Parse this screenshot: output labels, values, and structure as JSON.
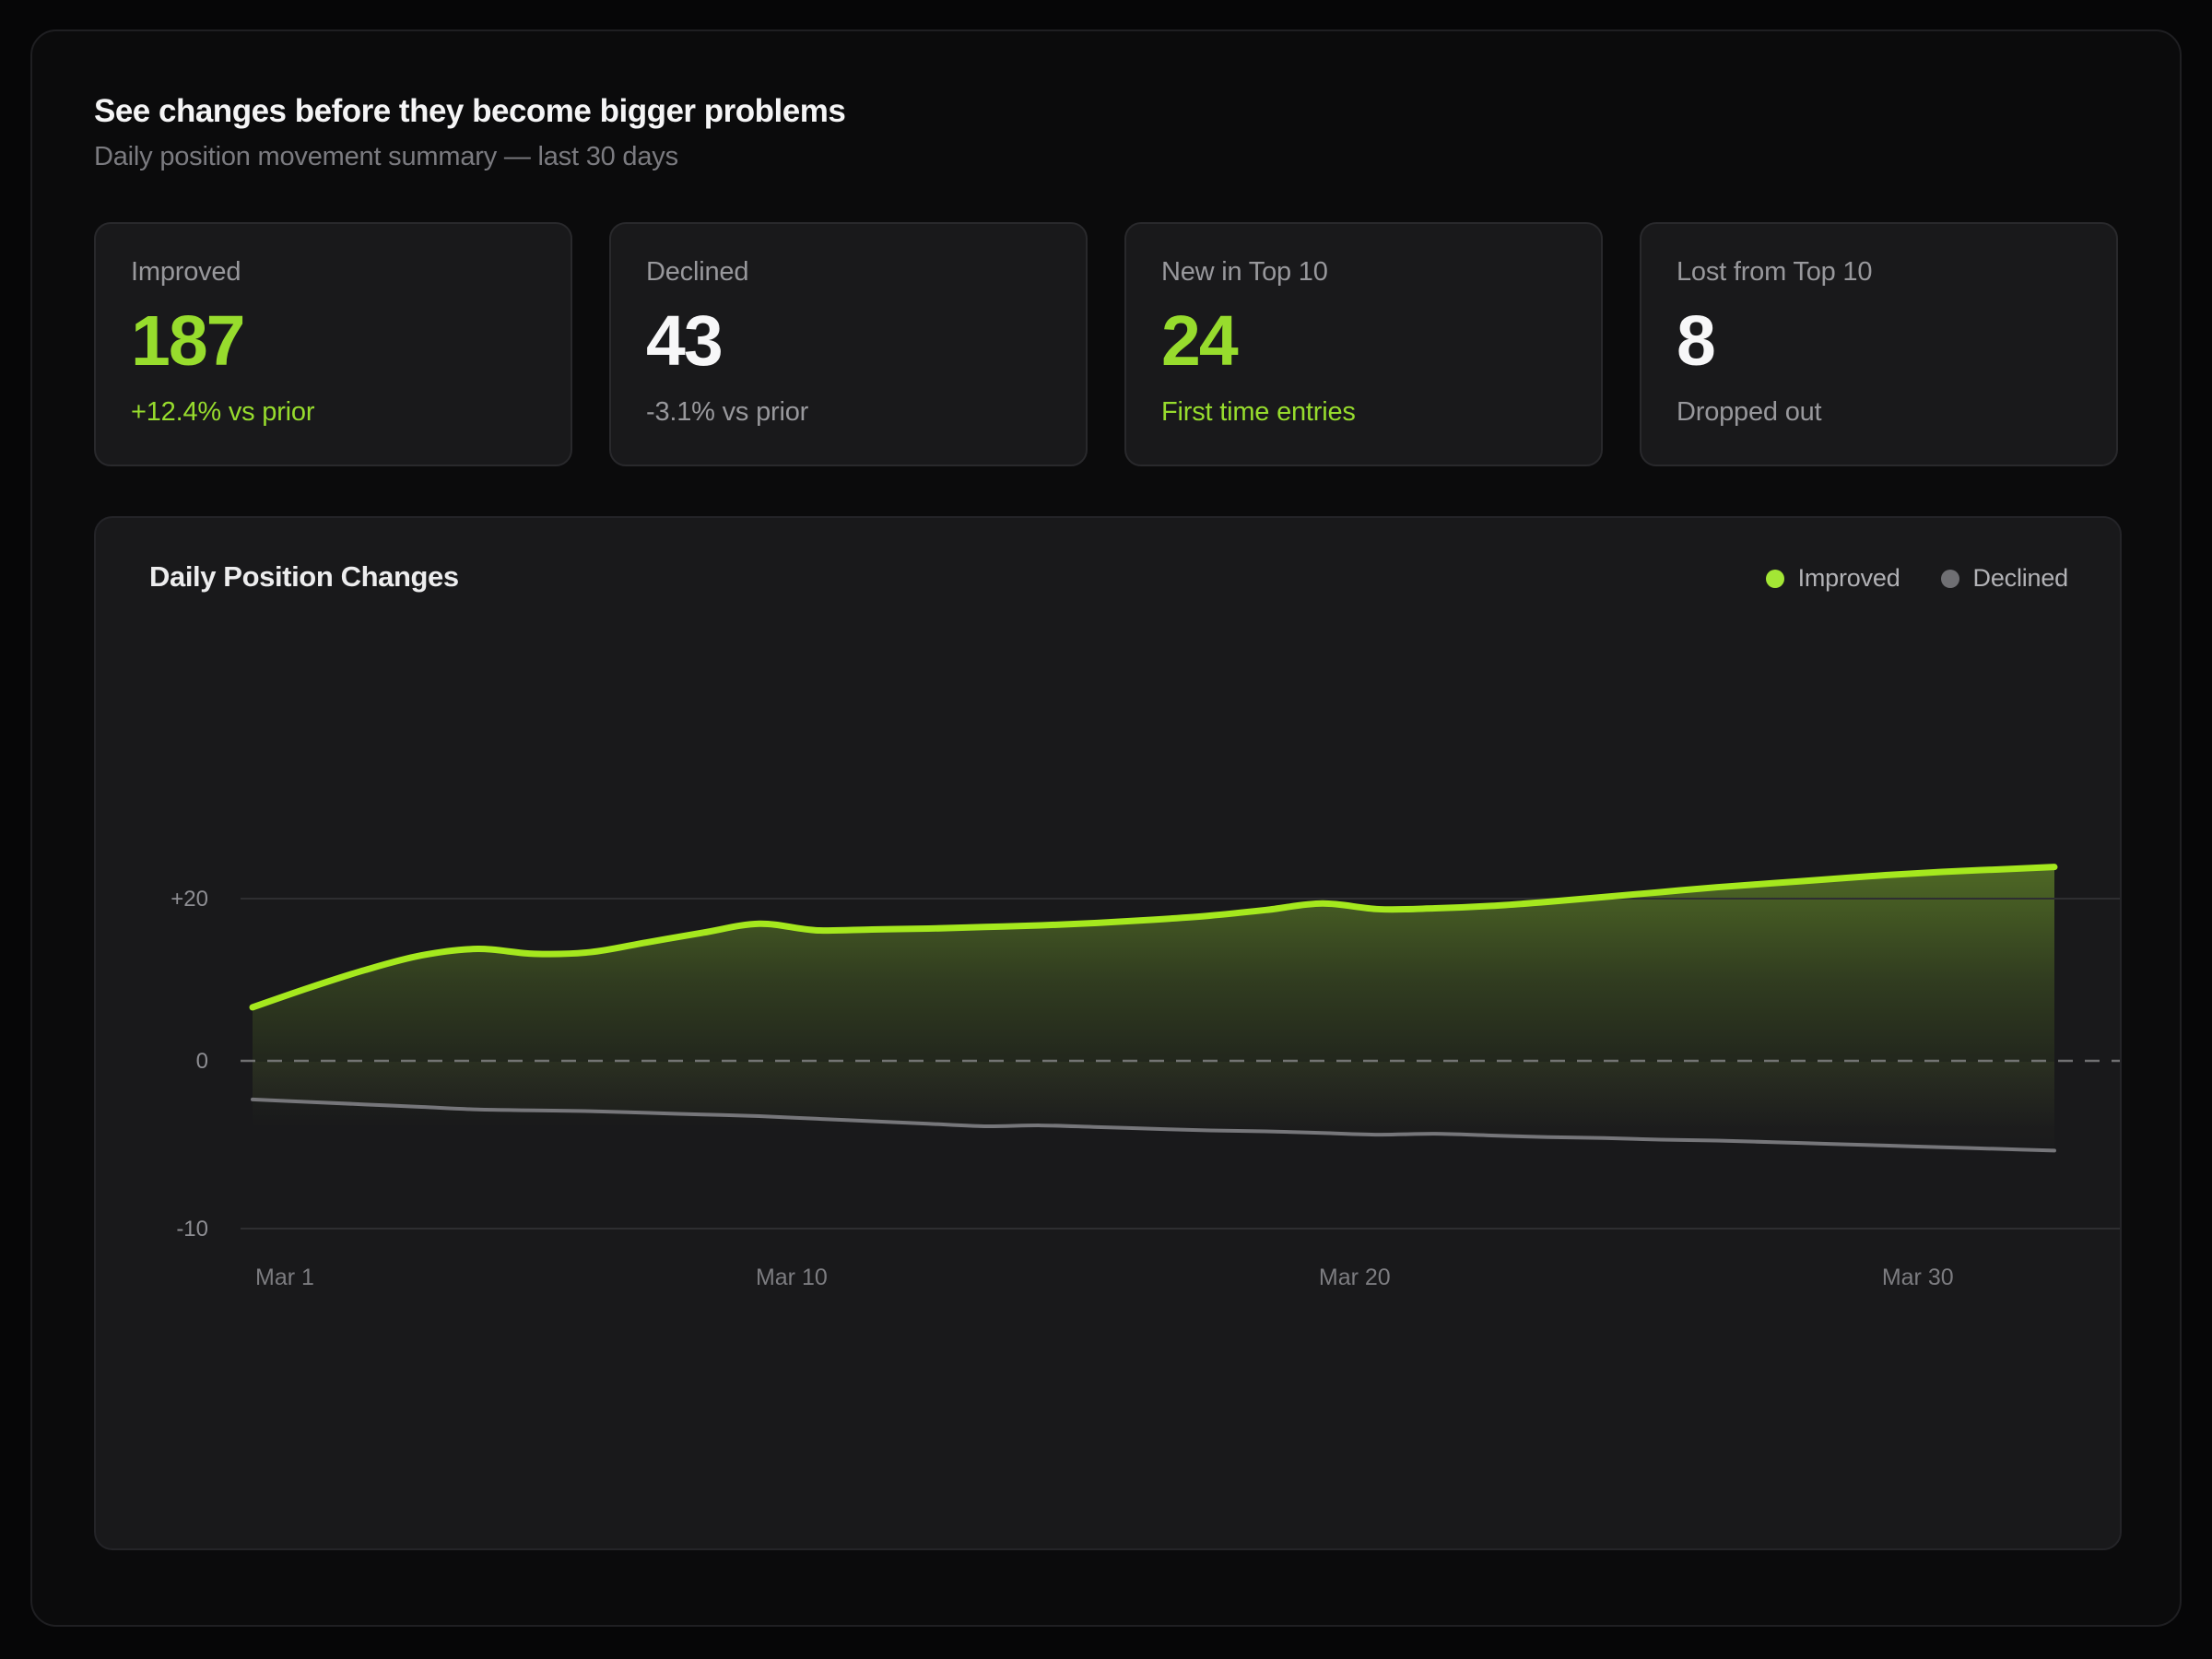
{
  "page": {
    "title": "See changes before they become bigger problems",
    "subtitle": "Daily position movement summary — last 30 days"
  },
  "colors": {
    "accent_green_text": "#97dc2d",
    "accent_green_line": "#a5e81e",
    "legend_green_dot": "#a3e635",
    "legend_gray_dot": "#6f6f73",
    "declined_line": "#76767a"
  },
  "stats": [
    {
      "label": "Improved",
      "value": "187",
      "sub": "+12.4% vs prior"
    },
    {
      "label": "Declined",
      "value": "43",
      "sub": "-3.1% vs prior"
    },
    {
      "label": "New in Top 10",
      "value": "24",
      "sub": "First time entries"
    },
    {
      "label": "Lost from Top 10",
      "value": "8",
      "sub": "Dropped out"
    }
  ],
  "chart": {
    "title": "Daily Position Changes",
    "legend": [
      {
        "label": "Improved",
        "color": "#a3e635"
      },
      {
        "label": "Declined",
        "color": "#6f6f73"
      }
    ]
  },
  "chart_data": {
    "type": "area",
    "title": "Daily Position Changes",
    "grid": "horizontal",
    "legend_position": "top-right",
    "x_axis": {
      "tick_labels": [
        "Mar 1",
        "Mar 10",
        "Mar 20",
        "Mar 30"
      ],
      "tick_days": [
        1,
        10,
        20,
        30
      ],
      "total_days": 33
    },
    "y_axis": {
      "ticks": [
        {
          "label": "+20",
          "value": 20
        },
        {
          "label": "0",
          "value": 0
        },
        {
          "label": "-10",
          "value": -10
        }
      ],
      "zero_line_dashed": true
    },
    "series": [
      {
        "name": "Improved",
        "color": "#a5e81e",
        "values": [
          6.6,
          9.0,
          11.2,
          13.0,
          13.8,
          13.2,
          13.4,
          14.6,
          15.8,
          16.9,
          16.1,
          16.2,
          16.3,
          16.5,
          16.7,
          17.0,
          17.4,
          17.9,
          18.6,
          19.4,
          18.7,
          18.8,
          19.1,
          19.6,
          20.2,
          20.8,
          21.4,
          21.9,
          22.4,
          22.9,
          23.3,
          23.6,
          23.9
        ]
      },
      {
        "name": "Declined",
        "color": "#76767a",
        "values": [
          -2.3,
          -2.45,
          -2.6,
          -2.75,
          -2.9,
          -2.95,
          -3.0,
          -3.1,
          -3.2,
          -3.3,
          -3.45,
          -3.6,
          -3.75,
          -3.9,
          -3.85,
          -3.95,
          -4.05,
          -4.15,
          -4.2,
          -4.3,
          -4.4,
          -4.35,
          -4.45,
          -4.55,
          -4.6,
          -4.7,
          -4.75,
          -4.85,
          -4.95,
          -5.05,
          -5.15,
          -5.25,
          -5.35
        ]
      }
    ]
  }
}
